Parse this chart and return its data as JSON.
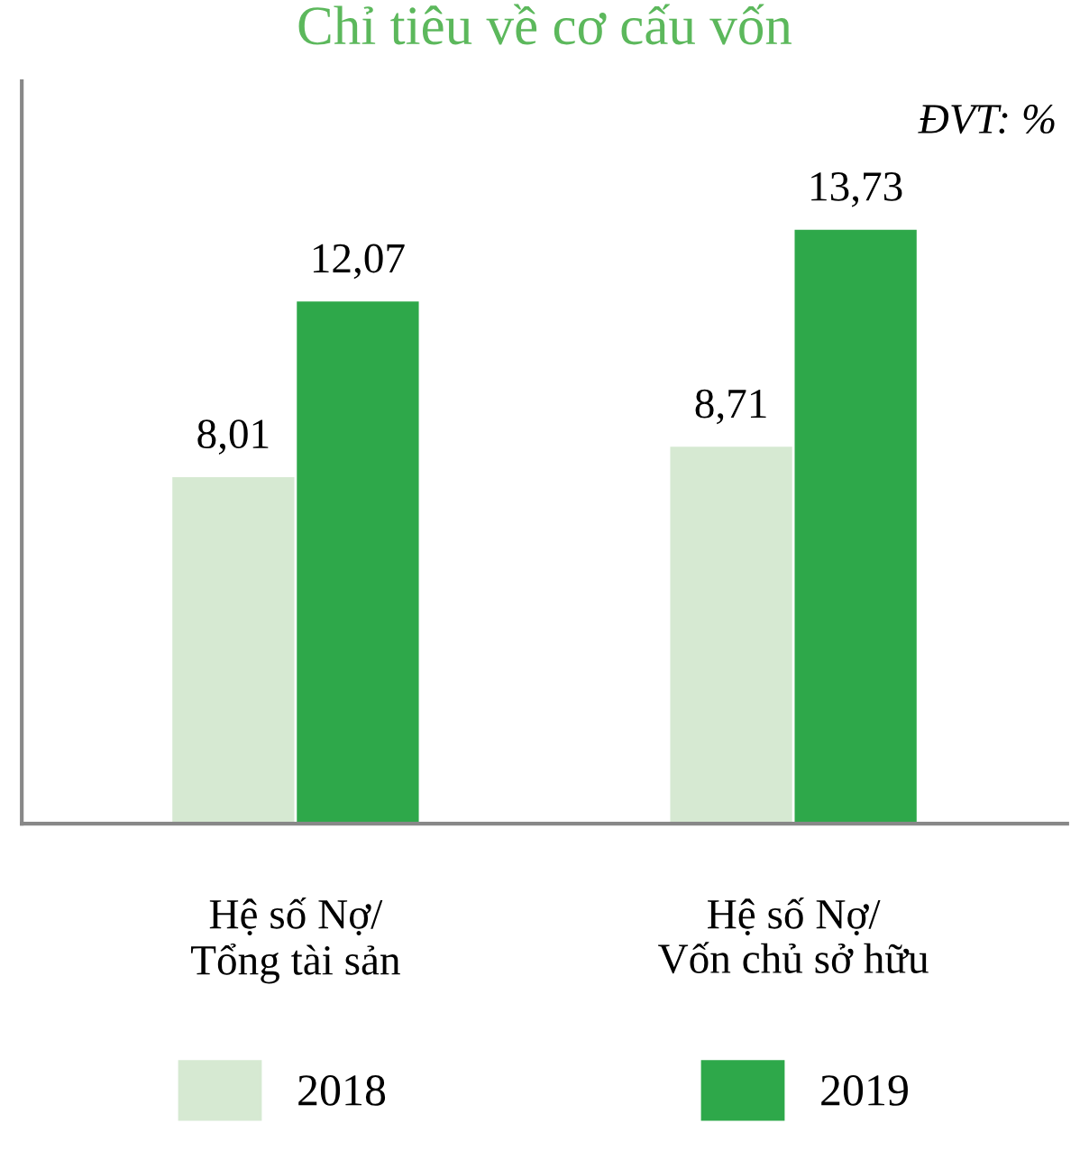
{
  "chart_data": {
    "type": "bar",
    "title": "Chỉ tiêu về cơ cấu vốn",
    "annotations": [
      "ĐVT: %"
    ],
    "categories": [
      "Hệ số Nợ/\nTổng tài sản",
      "Hệ số Nợ/\nVốn chủ sở hữu"
    ],
    "series": [
      {
        "name": "2018",
        "color": "#d6e9d2",
        "values": [
          8.01,
          8.71
        ],
        "value_labels": [
          "8,01",
          "8,71"
        ]
      },
      {
        "name": "2019",
        "color": "#2ea84a",
        "values": [
          12.07,
          13.73
        ],
        "value_labels": [
          "12,07",
          "13,73"
        ]
      }
    ],
    "legend": "bottom",
    "grid": false
  }
}
